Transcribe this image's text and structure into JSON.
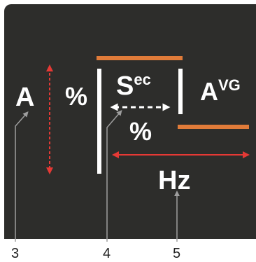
{
  "labels": {
    "amplitude": "A",
    "percent_left": "%",
    "sec_base": "S",
    "sec_sup": "ec",
    "percent_center": "%",
    "avg_base": "A",
    "avg_sup": "VG",
    "hertz": "Hz"
  },
  "callouts": [
    "3",
    "4",
    "5"
  ],
  "colors": {
    "panel": "#2d2d2b",
    "orange_bar": "#e07b39",
    "white_bar": "#ffffff",
    "red_arrow": "#e53935",
    "callout_line": "#9e9e9e"
  }
}
